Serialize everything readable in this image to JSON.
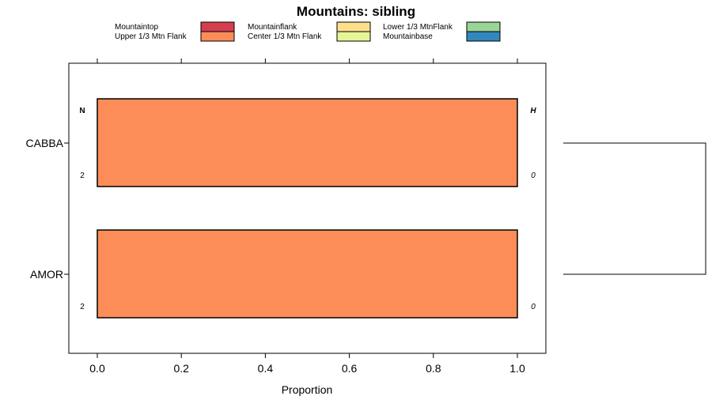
{
  "chart_data": {
    "type": "bar",
    "orientation": "horizontal",
    "stacked": true,
    "title": "Mountains: sibling",
    "xlabel": "Proportion",
    "ylabel": "",
    "xlim": [
      -0.07,
      1.07
    ],
    "xticks": [
      "0.0",
      "0.2",
      "0.4",
      "0.6",
      "0.8",
      "1.0"
    ],
    "xtick_values": [
      0,
      0.2,
      0.4,
      0.6,
      0.8,
      1.0
    ],
    "categories": [
      "CABBA",
      "AMOR"
    ],
    "series": [
      {
        "name": "Mountaintop",
        "color": "#D53E4F",
        "values": [
          0,
          0
        ]
      },
      {
        "name": "Upper 1/3 Mtn Flank",
        "color": "#FC8D59",
        "values": [
          1,
          1
        ]
      },
      {
        "name": "Mountainflank",
        "color": "#FEE08B",
        "values": [
          0,
          0
        ]
      },
      {
        "name": "Center 1/3 Mtn Flank",
        "color": "#E6F598",
        "values": [
          0,
          0
        ]
      },
      {
        "name": "Lower 1/3 MtnFlank",
        "color": "#99D594",
        "values": [
          0,
          0
        ]
      },
      {
        "name": "Mountainbase",
        "color": "#3288BD",
        "values": [
          0,
          0
        ]
      }
    ],
    "legend_order": [
      "Mountaintop",
      "Mountainflank",
      "Lower 1/3 MtnFlank",
      "Upper 1/3 Mtn Flank",
      "Center 1/3 Mtn Flank",
      "Mountainbase"
    ],
    "legend_position": "top",
    "n_header": "N",
    "h_header": "H",
    "n_values": [
      "2",
      "2"
    ],
    "h_values": [
      "0",
      "0"
    ],
    "dendrogram": "CABBA-AMOR joined"
  }
}
